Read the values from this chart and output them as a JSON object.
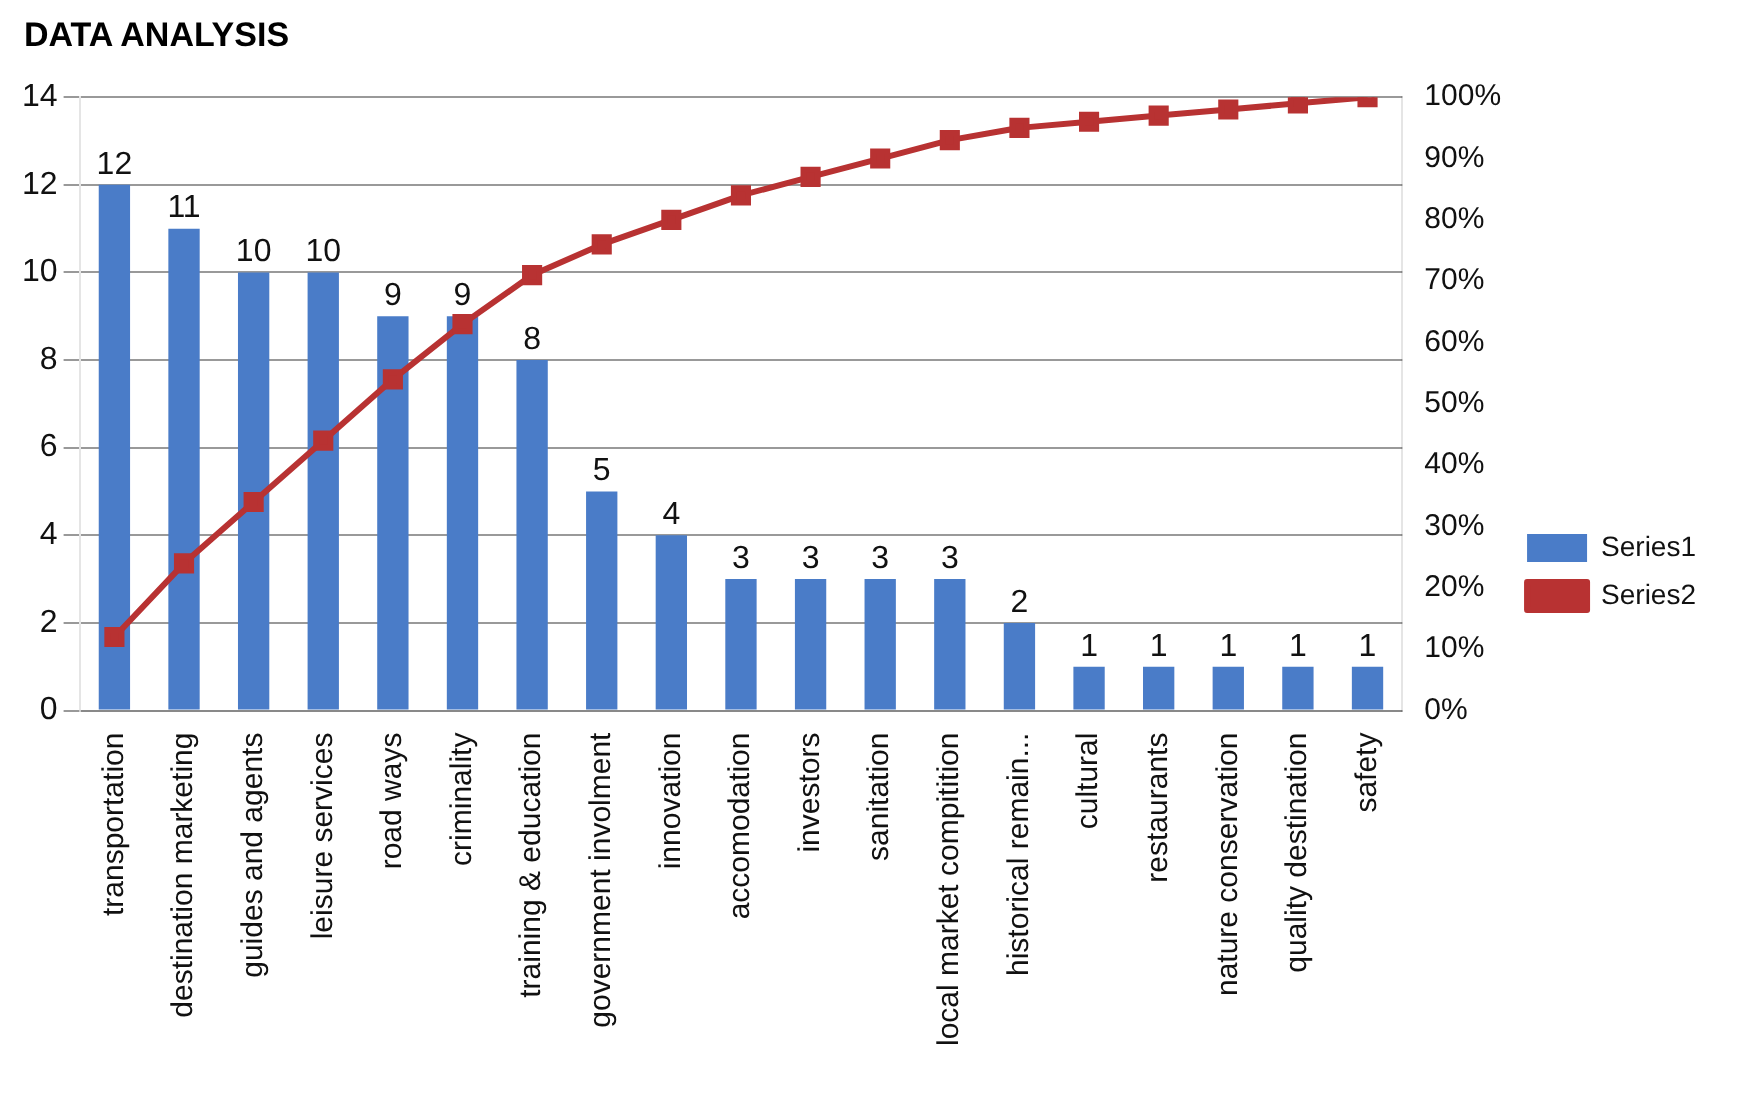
{
  "chart_data": {
    "type": "bar",
    "title": "DATA ANALYSIS",
    "categories": [
      "transportation",
      "destination marketing",
      "guides and agents",
      "leisure services",
      "road ways",
      "criminality",
      "training & education",
      "government involment",
      "innovation",
      "accomodation",
      "investors",
      "sanitation",
      "local market compitition",
      "historical remain...",
      "cultural",
      "restaurants",
      "nature conservation",
      "quality destination",
      "safety"
    ],
    "series": [
      {
        "name": "Series1",
        "color": "#4a7cc8",
        "values": [
          12,
          11,
          10,
          10,
          9,
          9,
          8,
          5,
          4,
          3,
          3,
          3,
          3,
          2,
          1,
          1,
          1,
          1,
          1
        ],
        "value_labels": [
          "12",
          "11",
          "10",
          "10",
          "9",
          "9",
          "8",
          "5",
          "4",
          "3",
          "3",
          "3",
          "3",
          "2",
          "1",
          "1",
          "1",
          "1",
          "1"
        ]
      },
      {
        "name": "Series2",
        "type": "line",
        "axis": "y2",
        "color": "#b83232",
        "marker": "square",
        "values": [
          12,
          24,
          34,
          44,
          54,
          63,
          71,
          76,
          80,
          84,
          87,
          90,
          93,
          95,
          96,
          97,
          98,
          99,
          100
        ]
      }
    ],
    "ylim": [
      0,
      14
    ],
    "yticks": [
      0,
      2,
      4,
      6,
      8,
      10,
      12,
      14
    ],
    "y2lim": [
      0,
      100
    ],
    "y2ticks": [
      {
        "value": 0,
        "label": "0%"
      },
      {
        "value": 10,
        "label": "10%"
      },
      {
        "value": 20,
        "label": "20%"
      },
      {
        "value": 30,
        "label": "30%"
      },
      {
        "value": 40,
        "label": "40%"
      },
      {
        "value": 50,
        "label": "50%"
      },
      {
        "value": 60,
        "label": "60%"
      },
      {
        "value": 70,
        "label": "70%"
      },
      {
        "value": 80,
        "label": "80%"
      },
      {
        "value": 90,
        "label": "90%"
      },
      {
        "value": 100,
        "label": "100%"
      }
    ],
    "grid": "y",
    "legend": "right"
  }
}
